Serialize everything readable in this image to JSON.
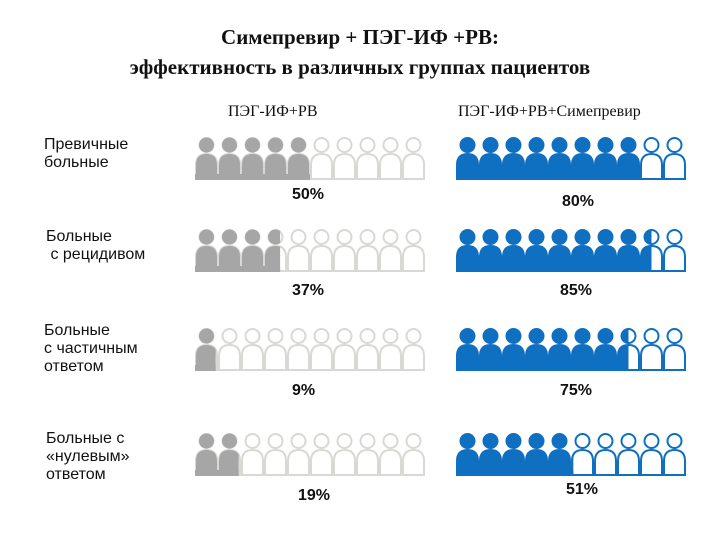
{
  "title_line1": "Симепревир + ПЭГ-ИФ +РВ:",
  "title_line2": "эффективность в различных группах пациентов",
  "colors": {
    "gray": "#a6a6a6",
    "blue": "#0f6fc0",
    "empty_gray": "#d8d8d4"
  },
  "chart_data": {
    "type": "pictogram",
    "title": "Симепревир + ПЭГ-ИФ +РВ: эффективность в различных группах пациентов",
    "icons_per_row": 10,
    "series": [
      {
        "name": "ПЭГ-ИФ+РВ",
        "color": "#a6a6a6",
        "values": [
          50,
          37,
          9,
          19
        ]
      },
      {
        "name": "ПЭГ-ИФ+РВ+Симепревир",
        "color": "#0f6fc0",
        "values": [
          80,
          85,
          75,
          51
        ]
      }
    ],
    "categories": [
      "Превичные\nбольные",
      "Больные\n с рецидивом",
      "Больные\nс частичным\nответом",
      "Больные с\n«нулевым»\nответом"
    ],
    "percent_labels": [
      [
        "50%",
        "37%",
        "9%",
        "19%"
      ],
      [
        "80%",
        "85%",
        "75%",
        "51%"
      ]
    ]
  }
}
